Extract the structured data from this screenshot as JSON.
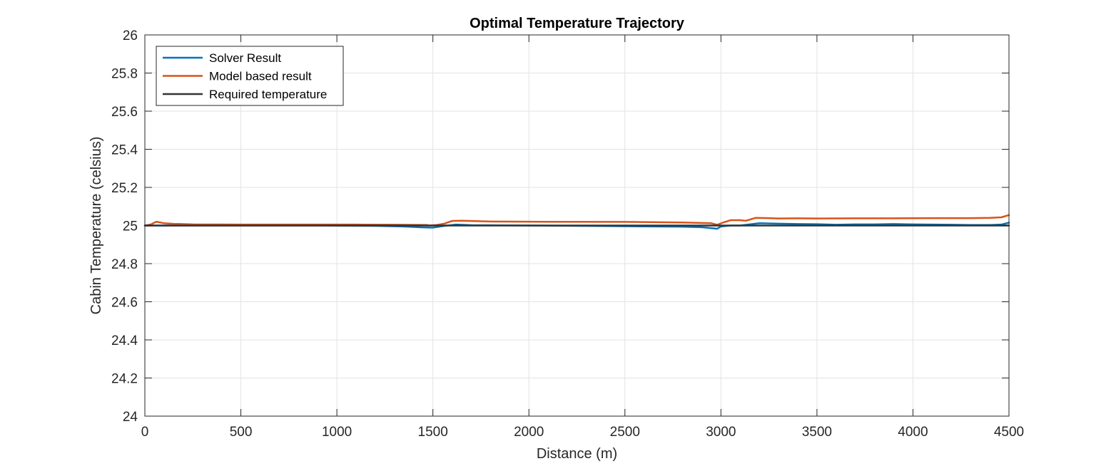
{
  "chart_data": {
    "type": "line",
    "title": "Optimal Temperature Trajectory",
    "xlabel": "Distance (m)",
    "ylabel": "Cabin Temperature (celsius)",
    "xlim": [
      0,
      4500
    ],
    "ylim": [
      24,
      26
    ],
    "xticks": [
      0,
      500,
      1000,
      1500,
      2000,
      2500,
      3000,
      3500,
      4000,
      4500
    ],
    "yticks": [
      24,
      24.2,
      24.4,
      24.6,
      24.8,
      25,
      25.2,
      25.4,
      25.6,
      25.8,
      26
    ],
    "xtick_labels": [
      "0",
      "500",
      "1000",
      "1500",
      "2000",
      "2500",
      "3000",
      "3500",
      "4000",
      "4500"
    ],
    "ytick_labels": [
      "24",
      "24.2",
      "24.4",
      "24.6",
      "24.8",
      "25",
      "25.2",
      "25.4",
      "25.6",
      "25.8",
      "26"
    ],
    "grid": true,
    "legend_position": "top-left",
    "series": [
      {
        "name": "Solver Result",
        "color": "#0072BD",
        "x": [
          0,
          100,
          300,
          600,
          900,
          1200,
          1350,
          1450,
          1500,
          1560,
          1620,
          1700,
          2000,
          2400,
          2800,
          2900,
          2980,
          3000,
          3050,
          3100,
          3200,
          3300,
          3400,
          3500,
          3600,
          3700,
          3800,
          3900,
          4000,
          4100,
          4200,
          4300,
          4400,
          4460,
          4500
        ],
        "y": [
          25.0,
          25.0,
          25.0,
          25.0,
          25.0,
          24.998,
          24.995,
          24.99,
          24.989,
          24.998,
          25.005,
          25.002,
          25.0,
          24.997,
          24.994,
          24.991,
          24.983,
          24.995,
          25.0,
          25.0,
          25.012,
          25.01,
          25.008,
          25.007,
          25.004,
          25.006,
          25.006,
          25.008,
          25.006,
          25.005,
          25.004,
          25.003,
          25.003,
          25.005,
          25.015
        ]
      },
      {
        "name": "Model based result",
        "color": "#D95319",
        "x": [
          0,
          30,
          60,
          100,
          150,
          250,
          500,
          800,
          1100,
          1300,
          1470,
          1480,
          1520,
          1560,
          1600,
          1650,
          1800,
          2000,
          2500,
          2800,
          2950,
          2980,
          3010,
          3050,
          3100,
          3130,
          3180,
          3250,
          3300,
          3400,
          3500,
          3700,
          3900,
          4100,
          4300,
          4400,
          4460,
          4500
        ],
        "y": [
          25.0,
          25.005,
          25.02,
          25.012,
          25.009,
          25.006,
          25.005,
          25.005,
          25.005,
          25.004,
          25.003,
          25.0,
          25.003,
          25.01,
          25.024,
          25.025,
          25.021,
          25.02,
          25.019,
          25.016,
          25.012,
          25.004,
          25.015,
          25.028,
          25.028,
          25.025,
          25.04,
          25.039,
          25.037,
          25.038,
          25.037,
          25.038,
          25.038,
          25.039,
          25.039,
          25.04,
          25.043,
          25.055
        ]
      },
      {
        "name": "Required temperature",
        "color": "#333333",
        "x": [
          0,
          4500
        ],
        "y": [
          25.0,
          25.0
        ]
      }
    ]
  }
}
